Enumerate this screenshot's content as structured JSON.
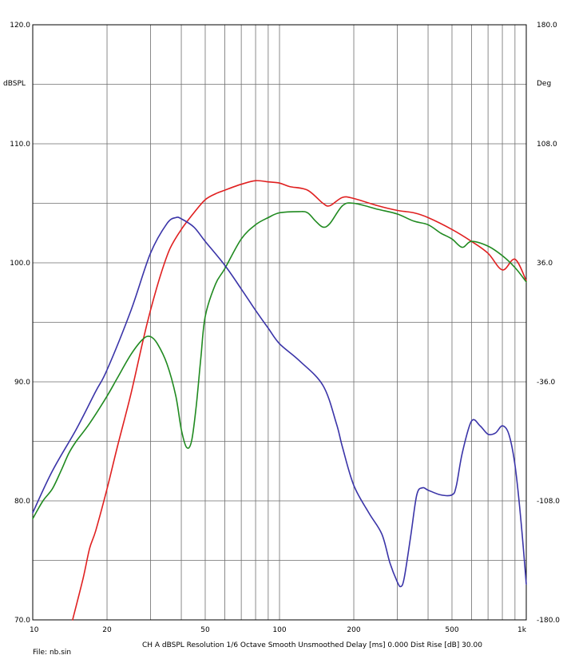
{
  "chart_data": {
    "type": "line",
    "x_scale": "log",
    "xlim": [
      10,
      1000
    ],
    "ylim": [
      70,
      120
    ],
    "ylim_right": [
      -180,
      180
    ],
    "grid": true,
    "legend": "none",
    "ylabel": "dBSPL",
    "ylabel_right": "Deg",
    "x_tick_labels": [
      {
        "value": 10,
        "label": "10"
      },
      {
        "value": 20,
        "label": "20"
      },
      {
        "value": 50,
        "label": "50"
      },
      {
        "value": 100,
        "label": "100"
      },
      {
        "value": 200,
        "label": "200"
      },
      {
        "value": 500,
        "label": "500"
      },
      {
        "value": 1000,
        "label": "1k"
      }
    ],
    "y_tick_labels_left": [
      {
        "value": 120,
        "label": "120.0"
      },
      {
        "value": 110,
        "label": "110.0"
      },
      {
        "value": 100,
        "label": "100.0"
      },
      {
        "value": 90,
        "label": "90.0"
      },
      {
        "value": 80,
        "label": "80.0"
      },
      {
        "value": 70,
        "label": "70.0"
      }
    ],
    "y_tick_labels_right": [
      {
        "value": 180,
        "label": "180.0"
      },
      {
        "value": 108,
        "label": "108.0"
      },
      {
        "value": 36,
        "label": "36.0"
      },
      {
        "value": -36,
        "label": "-36.0"
      },
      {
        "value": -108,
        "label": "-108.0"
      },
      {
        "value": -180,
        "label": "-180.0"
      }
    ],
    "series": [
      {
        "color": "#e02020",
        "x": [
          14.5,
          16,
          17,
          18,
          20,
          22,
          25,
          28,
          30,
          33,
          36,
          40,
          45,
          50,
          55,
          60,
          70,
          80,
          90,
          100,
          110,
          130,
          150,
          160,
          180,
          200,
          250,
          300,
          350,
          400,
          500,
          600,
          700,
          800,
          900,
          1000
        ],
        "y": [
          70,
          73.5,
          76,
          77.5,
          81,
          84.5,
          89,
          93.5,
          96,
          99,
          101.2,
          102.8,
          104.2,
          105.3,
          105.8,
          106.1,
          106.6,
          106.9,
          106.8,
          106.7,
          106.4,
          106.1,
          105.0,
          104.8,
          105.5,
          105.4,
          104.8,
          104.4,
          104.2,
          103.8,
          102.8,
          101.8,
          100.8,
          99.4,
          100.3,
          98.5
        ]
      },
      {
        "color": "#208a20",
        "x": [
          10,
          11,
          12,
          13,
          14,
          15,
          17,
          20,
          22,
          25,
          28,
          30,
          32,
          35,
          38,
          40,
          42,
          44,
          46,
          48,
          50,
          55,
          60,
          70,
          80,
          90,
          100,
          120,
          130,
          140,
          150,
          160,
          180,
          200,
          250,
          300,
          350,
          400,
          450,
          500,
          550,
          600,
          700,
          800,
          900,
          1000
        ],
        "y": [
          78.5,
          80,
          81,
          82.5,
          84,
          85,
          86.5,
          88.8,
          90.3,
          92.3,
          93.6,
          93.8,
          93.2,
          91.5,
          88.8,
          86,
          84.5,
          85,
          88,
          92,
          95.5,
          98.2,
          99.5,
          102,
          103.2,
          103.8,
          104.2,
          104.3,
          104.2,
          103.5,
          103.0,
          103.3,
          104.8,
          105.0,
          104.5,
          104.1,
          103.5,
          103.2,
          102.5,
          102.0,
          101.3,
          101.8,
          101.4,
          100.6,
          99.6,
          98.4
        ]
      },
      {
        "color": "#3a34a8",
        "x": [
          10,
          12,
          15,
          18,
          20,
          25,
          30,
          35,
          38,
          40,
          45,
          50,
          60,
          70,
          80,
          90,
          100,
          120,
          150,
          170,
          180,
          200,
          230,
          260,
          280,
          300,
          310,
          320,
          340,
          360,
          380,
          400,
          450,
          500,
          520,
          550,
          600,
          650,
          700,
          750,
          800,
          850,
          900,
          950,
          1000
        ],
        "y": [
          79,
          82.5,
          86,
          89.2,
          91,
          96,
          100.8,
          103.3,
          103.8,
          103.7,
          103,
          101.8,
          99.8,
          97.8,
          96.0,
          94.5,
          93.2,
          91.8,
          89.7,
          86.5,
          84.5,
          81.3,
          79,
          77.2,
          74.8,
          73.2,
          72.8,
          73.5,
          77,
          80.5,
          81.1,
          80.9,
          80.5,
          80.5,
          81.2,
          84,
          86.7,
          86.3,
          85.6,
          85.7,
          86.3,
          85.6,
          83.0,
          78.5,
          73.0
        ]
      }
    ]
  },
  "footer": {
    "file_label": "File: nb.sin",
    "settings_text": "CH A   dBSPL   Resolution 1/6 Octave   Smooth Unsmoothed   Delay [ms] 0.000   Dist Rise [dB] 30.00"
  }
}
